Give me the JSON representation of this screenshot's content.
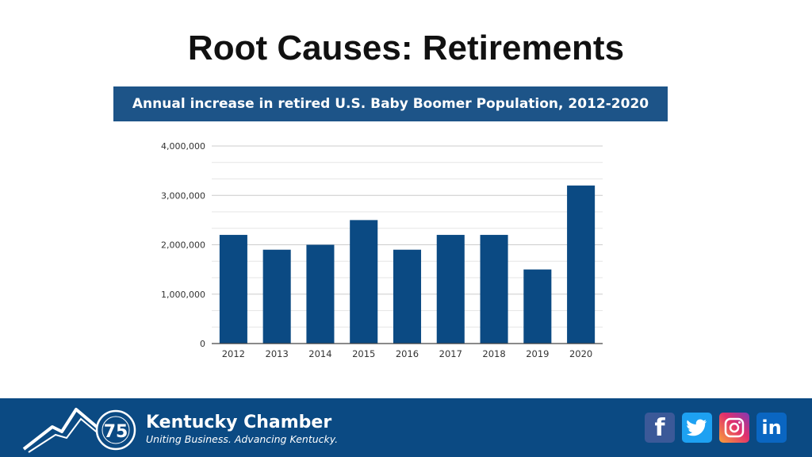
{
  "slide": {
    "title": "Root Causes: Retirements"
  },
  "chart_data": {
    "type": "bar",
    "title": "Annual increase in retired U.S. Baby Boomer Population, 2012-2020",
    "categories": [
      "2012",
      "2013",
      "2014",
      "2015",
      "2016",
      "2017",
      "2018",
      "2019",
      "2020"
    ],
    "values": [
      2200000,
      1900000,
      2000000,
      2500000,
      1900000,
      2200000,
      2200000,
      1500000,
      3200000
    ],
    "ylim": [
      0,
      4000000
    ],
    "yticks": [
      0,
      1000000,
      2000000,
      3000000,
      4000000
    ],
    "ytick_labels": [
      "0",
      "1,000,000",
      "2,000,000",
      "3,000,000",
      "4,000,000"
    ],
    "xlabel": "",
    "ylabel": "",
    "grid": true,
    "bar_color": "#0b4a83"
  },
  "footer": {
    "logo_number": "75",
    "brand_name": "Kentucky Chamber",
    "tagline": "Uniting Business. Advancing Kentucky.",
    "background": "#0b4a83",
    "social_icons": [
      "facebook-icon",
      "twitter-icon",
      "instagram-icon",
      "linkedin-icon"
    ]
  }
}
